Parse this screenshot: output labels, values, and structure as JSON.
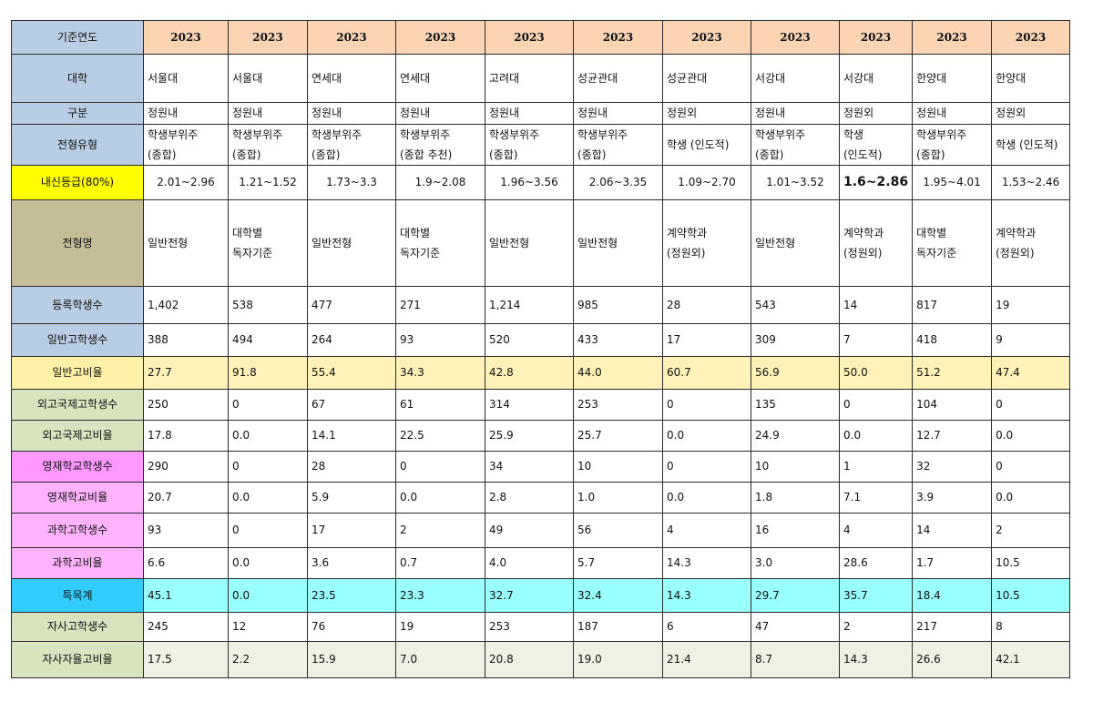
{
  "rows": [
    {
      "label": "기준연도",
      "label_bg": "#b9cde5",
      "cell_bg": "#fbd4b4",
      "height": 37,
      "type": "year",
      "values": [
        "2023",
        "2023",
        "2023",
        "2023",
        "2023",
        "2023",
        "2023",
        "2023",
        "2023",
        "2023",
        "2023"
      ]
    },
    {
      "label": "대학",
      "label_bg": "#b9cde5",
      "cell_bg": "#ffffff",
      "height": 53,
      "values": [
        "서울대",
        "서울대",
        "연세대",
        "연세대",
        "고려대",
        "성균관대",
        "성균관대",
        "서강대",
        "서강대",
        "한양대",
        "한양대"
      ]
    },
    {
      "label": "구분",
      "label_bg": "#b9cde5",
      "cell_bg": "#ffffff",
      "height": 24,
      "values": [
        "정원내",
        "정원내",
        "정원내",
        "정원내",
        "정원내",
        "정원내",
        "정원외",
        "정원내",
        "정원외",
        "정원내",
        "정원외"
      ]
    },
    {
      "label": "전형유형",
      "label_bg": "#b9cde5",
      "cell_bg": "#ffffff",
      "height": 44,
      "type": "wrap",
      "values": [
        "학생부위주\n(종합)",
        "학생부위주\n(종합)",
        "학생부위주\n(종합)",
        "학생부위주\n(종합 추천)",
        "학생부위주\n(종합)",
        "학생부위주\n(종합)",
        "학생 (인도적)",
        "학생부위주\n(종합)",
        "학생\n(인도적)",
        "학생부위주\n(종합)",
        "학생 (인도적)"
      ]
    },
    {
      "label": "내신등급(80%)",
      "label_bg": "#ffff00",
      "cell_bg": "#ffffff",
      "height": 38,
      "type": "center",
      "values": [
        "2.01~2.96",
        "1.21~1.52",
        "1.73~3.3",
        "1.9~2.08",
        "1.96~3.56",
        "2.06~3.35",
        "1.09~2.70",
        "1.01~3.52",
        "1.6~2.86",
        "1.95~4.01",
        "1.53~2.46"
      ]
    },
    {
      "label": "전형명",
      "label_bg": "#c4bd97",
      "cell_bg": "#ffffff",
      "height": 95,
      "type": "wrap",
      "values": [
        "일반전형",
        "대학별\n독자기준",
        "일반전형",
        "대학별\n독자기준",
        "일반전형",
        "일반전형",
        "계약학과\n(정원외)",
        "일반전형",
        "계약학과\n(정원외)",
        "대학별\n독자기준",
        "계약학과\n(정원외)"
      ]
    },
    {
      "label": "등록학생수",
      "label_bg": "#b9cde5",
      "cell_bg": "#ffffff",
      "height": 41,
      "values": [
        "1,402",
        "538",
        "477",
        "271",
        "1,214",
        "985",
        "28",
        "543",
        "14",
        "817",
        "19"
      ]
    },
    {
      "label": "일반고학생수",
      "label_bg": "#b9cde5",
      "cell_bg": "#ffffff",
      "height": 36,
      "values": [
        "388",
        "494",
        "264",
        "93",
        "520",
        "433",
        "17",
        "309",
        "7",
        "418",
        "9"
      ]
    },
    {
      "label": "일반고비율",
      "label_bg": "#fff2a8",
      "cell_bg": "#fff2b8",
      "height": 36,
      "values": [
        "27.7",
        "91.8",
        "55.4",
        "34.3",
        "42.8",
        "44.0",
        "60.7",
        "56.9",
        "50.0",
        "51.2",
        "47.4"
      ]
    },
    {
      "label": "외고국제고학생수",
      "label_bg": "#d7e4bd",
      "cell_bg": "#ffffff",
      "height": 34,
      "values": [
        "250",
        "0",
        "67",
        "61",
        "314",
        "253",
        "0",
        "135",
        "0",
        "104",
        "0"
      ]
    },
    {
      "label": "외고국제고비율",
      "label_bg": "#d7e4bd",
      "cell_bg": "#ffffff",
      "height": 34,
      "values": [
        "17.8",
        "0.0",
        "14.1",
        "22.5",
        "25.9",
        "25.7",
        "0.0",
        "24.9",
        "0.0",
        "12.7",
        "0.0"
      ]
    },
    {
      "label": "영재학교학생수",
      "label_bg": "#ff99ff",
      "cell_bg": "#ffffff",
      "height": 34,
      "values": [
        "290",
        "0",
        "28",
        "0",
        "34",
        "10",
        "0",
        "10",
        "1",
        "32",
        "0"
      ]
    },
    {
      "label": "영재학교비율",
      "label_bg": "#ffb3ff",
      "cell_bg": "#ffffff",
      "height": 34,
      "values": [
        "20.7",
        "0.0",
        "5.9",
        "0.0",
        "2.8",
        "1.0",
        "0.0",
        "1.8",
        "7.1",
        "3.9",
        "0.0"
      ]
    },
    {
      "label": "과학고학생수",
      "label_bg": "#ffb3ff",
      "cell_bg": "#ffffff",
      "height": 38,
      "values": [
        "93",
        "0",
        "17",
        "2",
        "49",
        "56",
        "4",
        "16",
        "4",
        "14",
        "2"
      ]
    },
    {
      "label": "과학고비율",
      "label_bg": "#ffb3ff",
      "cell_bg": "#ffffff",
      "height": 34,
      "values": [
        "6.6",
        "0.0",
        "3.6",
        "0.7",
        "4.0",
        "5.7",
        "14.3",
        "3.0",
        "28.6",
        "1.7",
        "10.5"
      ]
    },
    {
      "label": "특목계",
      "label_bg": "#33ccff",
      "cell_bg": "#99ffff",
      "height": 37,
      "values": [
        "45.1",
        "0.0",
        "23.5",
        "23.3",
        "32.7",
        "32.4",
        "14.3",
        "29.7",
        "35.7",
        "18.4",
        "10.5"
      ]
    },
    {
      "label": "자사고학생수",
      "label_bg": "#d7e4bd",
      "cell_bg": "#ffffff",
      "height": 32,
      "values": [
        "245",
        "12",
        "76",
        "19",
        "253",
        "187",
        "6",
        "47",
        "2",
        "217",
        "8"
      ]
    },
    {
      "label": "자사자율고비율",
      "label_bg": "#d7e4bd",
      "cell_bg": "#eef1e4",
      "height": 40,
      "values": [
        "17.5",
        "2.2",
        "15.9",
        "7.0",
        "20.8",
        "19.0",
        "21.4",
        "8.7",
        "14.3",
        "26.6",
        "42.1"
      ]
    }
  ]
}
